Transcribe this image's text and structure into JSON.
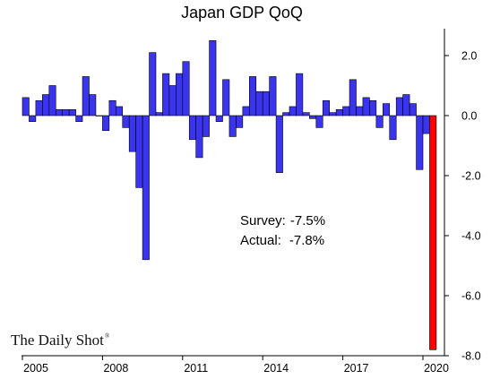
{
  "chart_data": {
    "type": "bar",
    "title": "Japan GDP QoQ",
    "xlabel": "",
    "ylabel": "",
    "ylim": [
      -8.0,
      2.8
    ],
    "yticks": [
      2.0,
      0.0,
      -2.0,
      -4.0,
      -6.0,
      -8.0
    ],
    "ytick_labels": [
      "2.0",
      "0.0",
      "-2.0",
      "-4.0",
      "-6.0",
      "-8.0"
    ],
    "y_axis_side": "right",
    "xtick_labels": [
      "2005",
      "2008",
      "2011",
      "2014",
      "2017",
      "2020"
    ],
    "grid": false,
    "legend": "none",
    "start_label": "2005 Q1",
    "categories": [
      "2005 Q1",
      "2005 Q2",
      "2005 Q3",
      "2005 Q4",
      "2006 Q1",
      "2006 Q2",
      "2006 Q3",
      "2006 Q4",
      "2007 Q1",
      "2007 Q2",
      "2007 Q3",
      "2007 Q4",
      "2008 Q1",
      "2008 Q2",
      "2008 Q3",
      "2008 Q4",
      "2009 Q1",
      "2009 Q2",
      "2009 Q3",
      "2009 Q4",
      "2010 Q1",
      "2010 Q2",
      "2010 Q3",
      "2010 Q4",
      "2011 Q1",
      "2011 Q2",
      "2011 Q3",
      "2011 Q4",
      "2012 Q1",
      "2012 Q2",
      "2012 Q3",
      "2012 Q4",
      "2013 Q1",
      "2013 Q2",
      "2013 Q3",
      "2013 Q4",
      "2014 Q1",
      "2014 Q2",
      "2014 Q3",
      "2014 Q4",
      "2015 Q1",
      "2015 Q2",
      "2015 Q3",
      "2015 Q4",
      "2016 Q1",
      "2016 Q2",
      "2016 Q3",
      "2016 Q4",
      "2017 Q1",
      "2017 Q2",
      "2017 Q3",
      "2017 Q4",
      "2018 Q1",
      "2018 Q2",
      "2018 Q3",
      "2018 Q4",
      "2019 Q1",
      "2019 Q2",
      "2019 Q3",
      "2019 Q4",
      "2020 Q1",
      "2020 Q2"
    ],
    "values": [
      0.6,
      -0.2,
      0.5,
      0.7,
      1.0,
      0.2,
      0.2,
      0.2,
      -0.2,
      1.3,
      0.7,
      0.0,
      -0.5,
      0.5,
      0.3,
      -0.4,
      -1.2,
      -2.4,
      -4.8,
      2.1,
      0.1,
      1.4,
      1.0,
      1.4,
      1.8,
      -0.8,
      -1.4,
      -0.7,
      2.5,
      -0.2,
      1.2,
      -0.7,
      -0.4,
      0.3,
      1.3,
      0.8,
      0.8,
      1.3,
      -1.9,
      0.1,
      0.3,
      1.4,
      0.1,
      -0.1,
      -0.4,
      0.5,
      0.1,
      0.2,
      0.3,
      1.2,
      0.3,
      0.6,
      0.5,
      -0.4,
      0.4,
      -0.8,
      0.6,
      0.7,
      0.4,
      -1.8,
      -0.6,
      -7.8
    ],
    "highlight_index": 61,
    "colors": {
      "bar": "#3b34ee",
      "highlight": "#ff0000",
      "bar_stroke": "#000000"
    },
    "annotations": [
      {
        "label": "Survey:",
        "value": "-7.5%"
      },
      {
        "label": "Actual:",
        "value": "-7.8%"
      }
    ]
  },
  "watermark": {
    "text": "The Daily Shot",
    "mark": "®"
  }
}
